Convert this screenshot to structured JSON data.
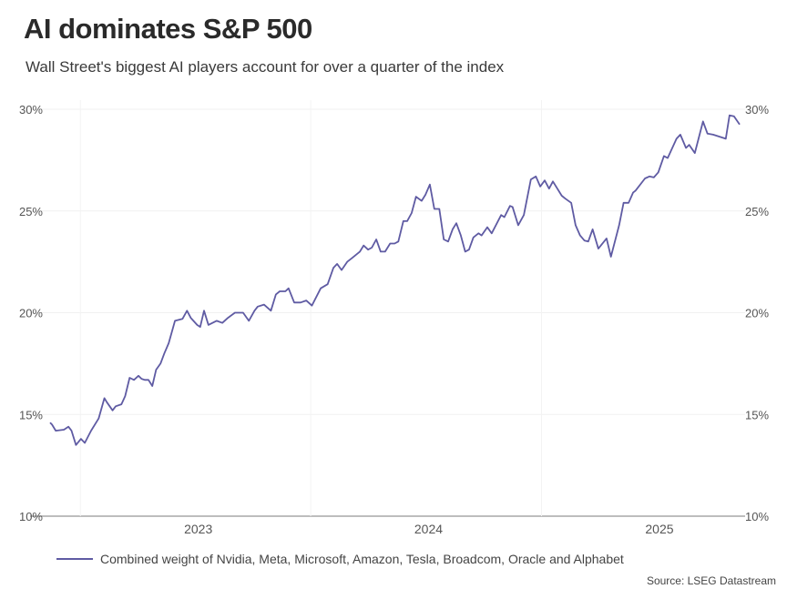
{
  "chart_data": {
    "type": "line",
    "title": "AI dominates S&P 500",
    "subtitle": "Wall Street's biggest AI players account for over a quarter of the index",
    "source": "Source: LSEG Datastream",
    "xlabel": "",
    "ylabel": "",
    "ylim": [
      10,
      30
    ],
    "y_ticks": [
      "10%",
      "15%",
      "20%",
      "25%",
      "30%"
    ],
    "y_tick_values": [
      10,
      15,
      20,
      25,
      30
    ],
    "y_axis_sides": "both",
    "x_ticks": [
      "2023",
      "2024",
      "2025"
    ],
    "x_tick_dates": [
      "2023-01-01",
      "2024-01-01",
      "2025-01-01"
    ],
    "xlim": [
      "2022-05-14",
      "2025-05-11"
    ],
    "grid": "horizontal and vertical, faint",
    "legend_position": "bottom",
    "line_color": "#5f5ba3",
    "series": [
      {
        "name": "Combined weight of Nvidia, Meta, Microsoft, Amazon, Tesla, Broadcom, Oracle and Alphabet",
        "x": [
          "2022-05-14",
          "2022-05-17",
          "2022-05-23",
          "2022-06-05",
          "2022-06-12",
          "2022-06-17",
          "2022-06-24",
          "2022-07-02",
          "2022-07-08",
          "2022-07-18",
          "2022-07-30",
          "2022-08-08",
          "2022-08-12",
          "2022-08-21",
          "2022-08-26",
          "2022-09-04",
          "2022-09-10",
          "2022-09-17",
          "2022-09-24",
          "2022-10-01",
          "2022-10-06",
          "2022-10-11",
          "2022-10-17",
          "2022-10-23",
          "2022-10-29",
          "2022-11-05",
          "2022-11-11",
          "2022-11-18",
          "2022-11-28",
          "2022-12-10",
          "2022-12-17",
          "2022-12-23",
          "2023-01-02",
          "2023-01-07",
          "2023-01-13",
          "2023-01-20",
          "2023-02-02",
          "2023-02-11",
          "2023-02-20",
          "2023-03-03",
          "2023-03-16",
          "2023-03-25",
          "2023-04-03",
          "2023-04-08",
          "2023-04-18",
          "2023-04-29",
          "2023-05-07",
          "2023-05-13",
          "2023-05-22",
          "2023-05-27",
          "2023-06-05",
          "2023-06-15",
          "2023-06-24",
          "2023-07-03",
          "2023-07-17",
          "2023-07-28",
          "2023-08-06",
          "2023-08-12",
          "2023-08-19",
          "2023-08-28",
          "2023-09-05",
          "2023-09-13",
          "2023-09-17",
          "2023-09-23",
          "2023-09-30",
          "2023-10-06",
          "2023-10-13",
          "2023-10-20",
          "2023-10-27",
          "2023-11-04",
          "2023-11-11",
          "2023-11-17",
          "2023-11-25",
          "2023-12-01",
          "2023-12-08",
          "2023-12-15",
          "2023-12-24",
          "2023-12-30",
          "2024-01-06",
          "2024-01-13",
          "2024-01-21",
          "2024-01-28",
          "2024-02-04",
          "2024-02-11",
          "2024-02-17",
          "2024-02-24",
          "2024-03-02",
          "2024-03-08",
          "2024-03-15",
          "2024-03-23",
          "2024-03-28",
          "2024-04-06",
          "2024-04-13",
          "2024-04-28",
          "2024-05-03",
          "2024-05-12",
          "2024-05-16",
          "2024-05-25",
          "2024-06-03",
          "2024-06-14",
          "2024-06-22",
          "2024-06-29",
          "2024-07-06",
          "2024-07-13",
          "2024-07-19",
          "2024-08-02",
          "2024-08-08",
          "2024-08-17",
          "2024-08-24",
          "2024-08-31",
          "2024-09-07",
          "2024-09-13",
          "2024-09-20",
          "2024-09-29",
          "2024-10-12",
          "2024-10-19",
          "2024-11-01",
          "2024-11-08",
          "2024-11-16",
          "2024-11-23",
          "2024-11-27",
          "2024-12-12",
          "2024-12-19",
          "2024-12-26",
          "2025-01-02",
          "2025-01-11",
          "2025-01-17",
          "2025-01-31",
          "2025-02-06",
          "2025-02-15",
          "2025-02-20",
          "2025-03-01",
          "2025-03-14",
          "2025-03-21",
          "2025-03-30",
          "2025-04-19",
          "2025-04-25",
          "2025-05-02",
          "2025-05-11"
        ],
        "values": [
          14.6,
          14.5,
          14.2,
          14.25,
          14.4,
          14.2,
          13.5,
          13.8,
          13.6,
          14.2,
          14.8,
          15.8,
          15.6,
          15.2,
          15.4,
          15.5,
          15.9,
          16.8,
          16.7,
          16.9,
          16.75,
          16.7,
          16.7,
          16.4,
          17.2,
          17.5,
          18.0,
          18.5,
          19.6,
          19.7,
          20.1,
          19.75,
          19.4,
          19.3,
          20.1,
          19.4,
          19.6,
          19.5,
          19.75,
          20.0,
          20.0,
          19.6,
          20.1,
          20.3,
          20.4,
          20.1,
          20.9,
          21.05,
          21.05,
          21.2,
          20.5,
          20.5,
          20.6,
          20.35,
          21.2,
          21.4,
          22.2,
          22.4,
          22.1,
          22.5,
          22.7,
          22.9,
          23.0,
          23.3,
          23.1,
          23.2,
          23.6,
          23.0,
          23.0,
          23.4,
          23.4,
          23.5,
          24.5,
          24.5,
          24.9,
          25.7,
          25.5,
          25.8,
          26.3,
          25.1,
          25.1,
          23.6,
          23.5,
          24.1,
          24.4,
          23.8,
          23.0,
          23.1,
          23.7,
          23.9,
          23.8,
          24.2,
          23.9,
          24.8,
          24.7,
          25.25,
          25.2,
          24.3,
          24.8,
          26.55,
          26.7,
          26.2,
          26.5,
          26.1,
          26.45,
          25.75,
          25.6,
          25.4,
          24.3,
          23.8,
          23.55,
          23.5,
          24.1,
          23.15,
          23.65,
          22.75,
          24.3,
          25.4,
          25.4,
          25.9,
          26.0,
          26.6,
          26.7,
          26.65,
          26.9,
          27.7,
          27.6,
          28.55,
          28.75,
          28.1,
          28.25,
          27.85,
          29.4,
          28.8,
          28.75,
          28.55,
          29.7,
          29.65,
          29.25
        ]
      }
    ]
  }
}
